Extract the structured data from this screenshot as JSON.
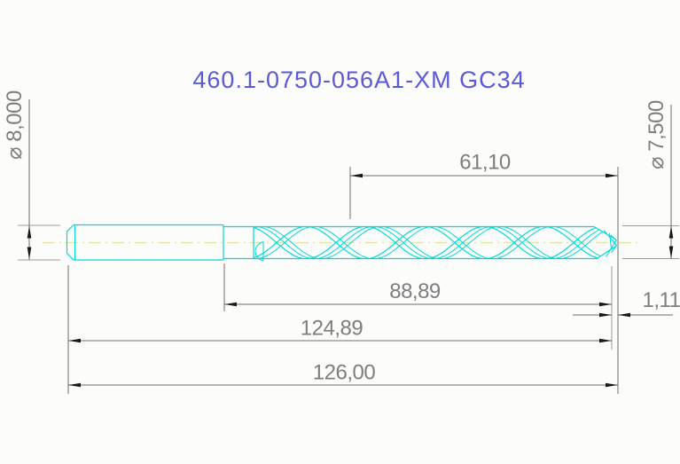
{
  "title": "460.1-0750-056A1-XM GC34",
  "dimensions": {
    "shank_diameter": "⌀ 8,000",
    "cutting_diameter": "⌀ 7,500",
    "flute_length": "61,10",
    "cutting_length": "88,89",
    "point_offset": "1,11",
    "body_length": "124,89",
    "overall_length": "126,00"
  },
  "colors": {
    "drill_outline": "#00d9d9",
    "centerline": "#f7f700",
    "dimension_line": "#6e6e6e",
    "extension_line": "#9c9c9c",
    "arrow": "#181818",
    "dimension_text": "#7e7e7e",
    "title_text": "#5a5ad8",
    "background": "#fcfcfa"
  }
}
